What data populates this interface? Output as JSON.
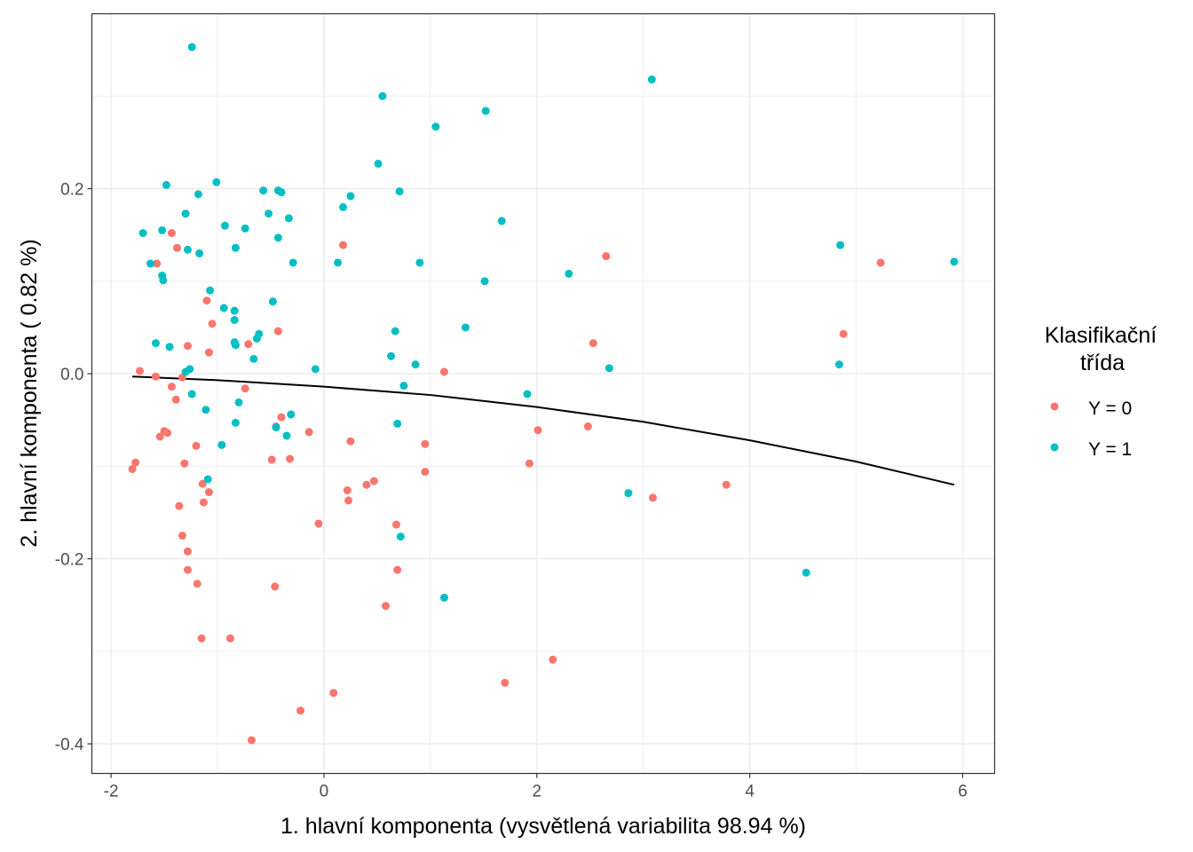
{
  "chart_data": {
    "type": "scatter",
    "xlabel": "1. hlavní komponenta (vysvětlená variabilita 98.94 %)",
    "ylabel": "2. hlavní komponenta ( 0.82 %)",
    "xlim": [
      -2.18,
      6.3
    ],
    "ylim": [
      -0.432,
      0.389
    ],
    "x_ticks": [
      -2,
      0,
      2,
      4,
      6
    ],
    "x_tick_labels": [
      "-2",
      "0",
      "2",
      "4",
      "6"
    ],
    "y_ticks": [
      -0.4,
      -0.2,
      0.0,
      0.2
    ],
    "y_tick_labels": [
      "-0.4",
      "-0.2",
      "0.0",
      "0.2"
    ],
    "grid": true,
    "legend": {
      "title_lines": [
        "Klasifikační",
        "třída"
      ],
      "placement": "right",
      "entries": [
        "Y = 0",
        "Y = 1"
      ]
    },
    "series": [
      {
        "name": "Y = 0",
        "color": "#F8766D",
        "points": [
          [
            -1.8,
            -0.103
          ],
          [
            -1.77,
            -0.096
          ],
          [
            -1.73,
            0.003
          ],
          [
            -1.57,
            0.119
          ],
          [
            -1.58,
            -0.003
          ],
          [
            -1.54,
            -0.068
          ],
          [
            -1.5,
            -0.062
          ],
          [
            -1.47,
            -0.064
          ],
          [
            -1.43,
            0.152
          ],
          [
            -1.38,
            0.136
          ],
          [
            -1.43,
            -0.014
          ],
          [
            -1.39,
            -0.028
          ],
          [
            -1.36,
            -0.143
          ],
          [
            -1.33,
            -0.175
          ],
          [
            -1.31,
            -0.097
          ],
          [
            -1.33,
            -0.004
          ],
          [
            -1.28,
            0.03
          ],
          [
            -1.28,
            -0.192
          ],
          [
            -1.28,
            -0.212
          ],
          [
            -1.19,
            -0.227
          ],
          [
            -1.2,
            -0.078
          ],
          [
            -1.14,
            -0.119
          ],
          [
            -1.13,
            -0.139
          ],
          [
            -1.15,
            -0.286
          ],
          [
            -1.1,
            0.079
          ],
          [
            -1.08,
            0.023
          ],
          [
            -1.08,
            -0.128
          ],
          [
            -1.05,
            0.054
          ],
          [
            -0.88,
            -0.286
          ],
          [
            -0.74,
            -0.016
          ],
          [
            -0.71,
            0.032
          ],
          [
            -0.68,
            -0.396
          ],
          [
            -0.49,
            -0.093
          ],
          [
            -0.46,
            -0.23
          ],
          [
            -0.43,
            0.046
          ],
          [
            -0.4,
            -0.047
          ],
          [
            -0.45,
            -0.057
          ],
          [
            -0.32,
            -0.092
          ],
          [
            -0.22,
            -0.364
          ],
          [
            -0.14,
            -0.063
          ],
          [
            -0.05,
            -0.162
          ],
          [
            0.09,
            -0.345
          ],
          [
            0.18,
            0.139
          ],
          [
            0.22,
            -0.126
          ],
          [
            0.23,
            -0.137
          ],
          [
            0.25,
            -0.073
          ],
          [
            0.4,
            -0.12
          ],
          [
            0.47,
            -0.116
          ],
          [
            0.58,
            -0.251
          ],
          [
            0.68,
            -0.163
          ],
          [
            0.69,
            -0.212
          ],
          [
            0.95,
            -0.076
          ],
          [
            0.95,
            -0.106
          ],
          [
            1.13,
            0.002
          ],
          [
            1.7,
            -0.334
          ],
          [
            1.93,
            -0.097
          ],
          [
            2.01,
            -0.061
          ],
          [
            2.15,
            -0.309
          ],
          [
            2.48,
            -0.057
          ],
          [
            2.53,
            0.033
          ],
          [
            2.65,
            0.127
          ],
          [
            3.09,
            -0.134
          ],
          [
            3.78,
            -0.12
          ],
          [
            4.88,
            0.043
          ],
          [
            5.23,
            0.12
          ]
        ]
      },
      {
        "name": "Y = 1",
        "color": "#00BFC4",
        "points": [
          [
            -1.24,
            0.353
          ],
          [
            -1.7,
            0.152
          ],
          [
            -1.63,
            0.119
          ],
          [
            -1.58,
            0.033
          ],
          [
            -1.52,
            0.155
          ],
          [
            -1.52,
            0.106
          ],
          [
            -1.51,
            0.101
          ],
          [
            -1.48,
            0.204
          ],
          [
            -1.45,
            0.029
          ],
          [
            -1.3,
            0.173
          ],
          [
            -1.28,
            0.134
          ],
          [
            -1.3,
            0.002
          ],
          [
            -1.26,
            0.005
          ],
          [
            -1.24,
            -0.022
          ],
          [
            -1.18,
            0.194
          ],
          [
            -1.17,
            0.13
          ],
          [
            -1.11,
            -0.039
          ],
          [
            -1.09,
            -0.114
          ],
          [
            -1.07,
            0.09
          ],
          [
            -1.01,
            0.207
          ],
          [
            -0.96,
            -0.077
          ],
          [
            -0.94,
            0.071
          ],
          [
            -0.93,
            0.16
          ],
          [
            -0.84,
            0.058
          ],
          [
            -0.84,
            0.068
          ],
          [
            -0.84,
            0.034
          ],
          [
            -0.83,
            0.031
          ],
          [
            -0.83,
            -0.053
          ],
          [
            -0.83,
            0.136
          ],
          [
            -0.8,
            -0.031
          ],
          [
            -0.74,
            0.157
          ],
          [
            -0.66,
            0.016
          ],
          [
            -0.63,
            0.038
          ],
          [
            -0.61,
            0.043
          ],
          [
            -0.57,
            0.198
          ],
          [
            -0.52,
            0.173
          ],
          [
            -0.48,
            0.078
          ],
          [
            -0.45,
            -0.058
          ],
          [
            -0.43,
            0.147
          ],
          [
            -0.43,
            0.198
          ],
          [
            -0.4,
            0.196
          ],
          [
            -0.35,
            -0.067
          ],
          [
            -0.33,
            0.168
          ],
          [
            -0.31,
            -0.044
          ],
          [
            -0.29,
            0.12
          ],
          [
            -0.08,
            0.005
          ],
          [
            0.13,
            0.12
          ],
          [
            0.18,
            0.18
          ],
          [
            0.25,
            0.192
          ],
          [
            0.51,
            0.227
          ],
          [
            0.55,
            0.3
          ],
          [
            0.63,
            0.019
          ],
          [
            0.67,
            0.046
          ],
          [
            0.69,
            -0.054
          ],
          [
            0.71,
            0.197
          ],
          [
            0.72,
            -0.176
          ],
          [
            0.75,
            -0.013
          ],
          [
            0.86,
            0.01
          ],
          [
            0.9,
            0.12
          ],
          [
            1.05,
            0.267
          ],
          [
            1.13,
            -0.242
          ],
          [
            1.33,
            0.05
          ],
          [
            1.51,
            0.1
          ],
          [
            1.52,
            0.284
          ],
          [
            1.67,
            0.165
          ],
          [
            1.91,
            -0.022
          ],
          [
            2.3,
            0.108
          ],
          [
            2.68,
            0.006
          ],
          [
            2.86,
            -0.129
          ],
          [
            3.08,
            0.318
          ],
          [
            4.53,
            -0.215
          ],
          [
            4.84,
            0.01
          ],
          [
            4.85,
            0.139
          ],
          [
            5.92,
            0.121
          ]
        ]
      }
    ],
    "curve": {
      "name": "decision boundary",
      "color": "#000000",
      "points": [
        [
          -1.8,
          -0.003
        ],
        [
          -1.0,
          -0.007
        ],
        [
          0.0,
          -0.014
        ],
        [
          1.0,
          -0.023
        ],
        [
          2.0,
          -0.036
        ],
        [
          3.0,
          -0.052
        ],
        [
          4.0,
          -0.072
        ],
        [
          5.0,
          -0.095
        ],
        [
          5.92,
          -0.12
        ]
      ]
    }
  }
}
